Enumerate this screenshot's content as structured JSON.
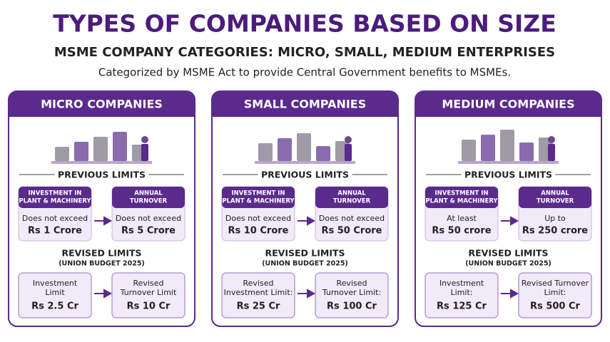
{
  "header": {
    "title": "TYPES OF COMPANIES BASED ON SIZE",
    "subtitle": "MSME COMPANY CATEGORIES: MICRO, SMALL, MEDIUM ENTERPRISES",
    "description": "Categorized by MSME Act to provide Central Government benefits to MSMEs."
  },
  "cards": [
    {
      "title": "MICRO COMPANIES",
      "previous_label": "PREVIOUS LIMITS",
      "previous": [
        {
          "head": [
            "INVESTMENT IN",
            "PLANT & MACHINERY"
          ],
          "text": "Does not exceed",
          "value": "Rs 1 Crore"
        },
        {
          "head": [
            "ANNUAL",
            "TURNOVER"
          ],
          "text": "Does not exceed",
          "value": "Rs 5 Crore"
        }
      ],
      "revised_label": "REVISED LIMITS",
      "revised_sublabel": "(UNION BUDGET 2025)",
      "revised": [
        {
          "label": [
            "Investment",
            "Limit"
          ],
          "value": "Rs 2.5 Cr"
        },
        {
          "label": [
            "Revised",
            "Turnover Limit"
          ],
          "value": "Rs 10 Cr"
        }
      ]
    },
    {
      "title": "SMALL COMPANIES",
      "previous_label": "PREVIOUS LIMITS",
      "previous": [
        {
          "head": [
            "INVESTMENT IN",
            "PLANT & MACHINERY"
          ],
          "text": "Does not exceed",
          "value": "Rs 10 Crore"
        },
        {
          "head": [
            "ANNUAL",
            "TURNOVER"
          ],
          "text": "Does not exceed",
          "value": "Rs 50 Crore"
        }
      ],
      "revised_label": "REVISED LIMITS",
      "revised_sublabel": "(UNION BUDGET 2025)",
      "revised": [
        {
          "label": [
            "Revised",
            "Investment Limit:"
          ],
          "value": "Rs 25 Cr"
        },
        {
          "label": [
            "Revised",
            "Turnover Limit:"
          ],
          "value": "Rs 100 Cr"
        }
      ]
    },
    {
      "title": "MEDIUM COMPANIES",
      "previous_label": "PREVIOUS LIMITS",
      "previous": [
        {
          "head": [
            "INVESTMENT IN",
            "PLANT & MACHINERY"
          ],
          "text": "At least",
          "value": "Rs 50 crore"
        },
        {
          "head": [
            "ANNUAL",
            "TURNOVER"
          ],
          "text": "Up to",
          "value": "Rs 250 crore"
        }
      ],
      "revised_label": "REVISED LIMITS",
      "revised_sublabel": "(UNION BUDGET 2025)",
      "revised": [
        {
          "label": [
            "Investment",
            "Limit:"
          ],
          "value": "Rs 125 Cr"
        },
        {
          "label": [
            "Revised Turnover",
            "Limit:"
          ],
          "value": "Rs 500 Cr"
        }
      ]
    }
  ]
}
